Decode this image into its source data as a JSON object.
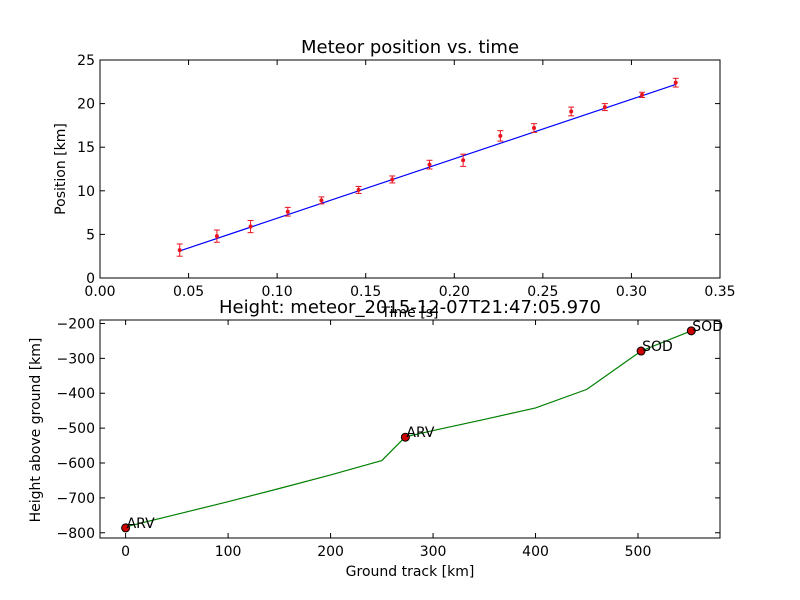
{
  "chart_data": [
    {
      "type": "scatter",
      "title": "Meteor position vs. time",
      "xlabel": "Time [s]",
      "ylabel": "Position [km]",
      "xlim": [
        0.0,
        0.35
      ],
      "ylim": [
        0,
        25
      ],
      "x_ticks": [
        0.0,
        0.05,
        0.1,
        0.15,
        0.2,
        0.25,
        0.3,
        0.35
      ],
      "x_tick_labels": [
        "0.00",
        "0.05",
        "0.10",
        "0.15",
        "0.20",
        "0.25",
        "0.30",
        "0.35"
      ],
      "y_ticks": [
        0,
        5,
        10,
        15,
        20,
        25
      ],
      "y_tick_labels": [
        "0",
        "5",
        "10",
        "15",
        "20",
        "25"
      ],
      "grid": false,
      "colors": {
        "points": "#e8141e",
        "errorbars": "#e8141e",
        "fit": "#0000ff"
      },
      "points": {
        "x": [
          0.045,
          0.066,
          0.085,
          0.106,
          0.125,
          0.146,
          0.165,
          0.186,
          0.205,
          0.226,
          0.245,
          0.266,
          0.285,
          0.306,
          0.325
        ],
        "y": [
          3.2,
          4.8,
          5.9,
          7.6,
          8.9,
          10.1,
          11.3,
          13.0,
          13.5,
          16.3,
          17.2,
          19.1,
          19.6,
          21.0,
          22.4
        ],
        "err": [
          0.7,
          0.7,
          0.7,
          0.5,
          0.4,
          0.4,
          0.4,
          0.5,
          0.7,
          0.6,
          0.5,
          0.5,
          0.4,
          0.3,
          0.5
        ]
      },
      "fit_line": {
        "x": [
          0.045,
          0.325
        ],
        "y": [
          3.1,
          22.2
        ]
      }
    },
    {
      "type": "line",
      "title": "Height: meteor_2015-12-07T21:47:05.970",
      "xlabel": "Ground track [km]",
      "ylabel": "Height above ground [km]",
      "xlim": [
        -25,
        580
      ],
      "ylim": [
        -815,
        -190
      ],
      "x_ticks": [
        0,
        100,
        200,
        300,
        400,
        500
      ],
      "x_tick_labels": [
        "0",
        "100",
        "200",
        "300",
        "400",
        "500"
      ],
      "y_ticks": [
        -800,
        -700,
        -600,
        -500,
        -400,
        -300,
        -200
      ],
      "y_tick_labels": [
        "−800",
        "−700",
        "−600",
        "−500",
        "−400",
        "−300",
        "−200"
      ],
      "grid": false,
      "colors": {
        "line": "#008000",
        "markers": "#cc0000",
        "marker_edge": "#000000"
      },
      "curve": {
        "x": [
          0,
          50,
          100,
          150,
          200,
          250,
          273,
          300,
          350,
          400,
          450,
          503,
          552
        ],
        "y": [
          -783,
          -747,
          -711,
          -673,
          -634,
          -593,
          -525,
          -507,
          -475,
          -442,
          -389,
          -279,
          -221
        ]
      },
      "stations": [
        {
          "label": "ARV",
          "x": 0,
          "y": -786
        },
        {
          "label": "ARV",
          "x": 273,
          "y": -526
        },
        {
          "label": "SOD",
          "x": 503,
          "y": -279
        },
        {
          "label": "SOD",
          "x": 552,
          "y": -221
        }
      ]
    }
  ]
}
